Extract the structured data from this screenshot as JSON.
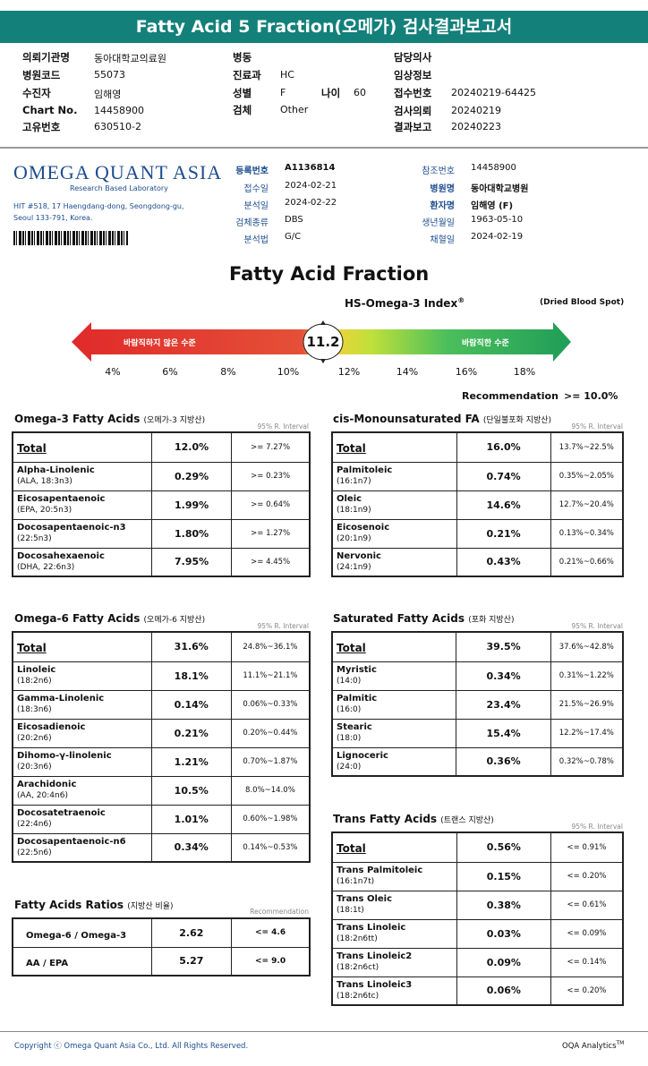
{
  "banner": "Fatty Acid 5 Fraction(오메가) 검사결과보고서",
  "patient": {
    "l1": "의뢰기관명",
    "v1": "동아대학교의료원",
    "l2": "병원코드",
    "v2": "55073",
    "l3": "수진자",
    "v3": "임해영",
    "l4": "Chart No.",
    "v4": "14458900",
    "l5": "고유번호",
    "v5": "630510-2",
    "l6": "병동",
    "v6": "",
    "l7": "진료과",
    "v7": "HC",
    "l8": "성별",
    "v8": "F",
    "l9": "나이",
    "v9": "60",
    "l10": "검체",
    "v10": "Other",
    "l11": "담당의사",
    "v11": "",
    "l12": "임상정보",
    "v12": "",
    "l13": "접수번호",
    "v13": "20240219-64425",
    "l14": "검사의뢰",
    "v14": "20240219",
    "l15": "결과보고",
    "v15": "20240223"
  },
  "lab": {
    "name": "OMEGA QUANT ASIA",
    "tagline": "Research Based Laboratory",
    "addr1": "HIT #518, 17 Haengdang-dong, Seongdong-gu,",
    "addr2": "Seoul 133-791, Korea."
  },
  "info": {
    "l1": "등록번호",
    "v1": "A1136814",
    "l2": "접수일",
    "v2": "2024-02-21",
    "l3": "분석일",
    "v3": "2024-02-22",
    "l4": "검체종류",
    "v4": "DBS",
    "l5": "분석법",
    "v5": "G/C",
    "l6": "참조번호",
    "v6": "14458900",
    "l7": "병원명",
    "v7": "동아대학교병원",
    "l8": "환자명",
    "v8": "임해영 (F)",
    "l9": "생년월일",
    "v9": "1963-05-10",
    "l10": "채혈일",
    "v10": "2024-02-19"
  },
  "fraction": {
    "title": "Fatty Acid Fraction",
    "index_label": "HS-Omega-3 Index",
    "reg": "®",
    "dried": "(Dried Blood Spot)",
    "bad": "바람직하지 않은 수준",
    "good": "바람직한 수준",
    "value": "11.2",
    "ticks": [
      "4%",
      "6%",
      "8%",
      "10%",
      "12%",
      "14%",
      "16%",
      "18%"
    ],
    "rec_label": "Recommendation",
    "rec_value": ">= 10.0%",
    "colors": {
      "red": "#e33a3a",
      "green": "#2aa85a",
      "yellow": "#c9e23a"
    }
  },
  "ri": "95% R. Interval",
  "rec_hdr": "Recommendation",
  "omega3": {
    "title": "Omega-3 Fatty Acids",
    "sub": "(오메가-3 지방산)",
    "total": {
      "name": "Total",
      "value": "12.0%",
      "range": ">= 7.27%"
    },
    "rows": [
      {
        "name": "Alpha-Linolenic",
        "abbr": "(ALA, 18:3n3)",
        "value": "0.29%",
        "range": ">= 0.23%"
      },
      {
        "name": "Eicosapentaenoic",
        "abbr": "(EPA, 20:5n3)",
        "value": "1.99%",
        "range": ">= 0.64%"
      },
      {
        "name": "Docosapentaenoic-n3",
        "abbr": "(22:5n3)",
        "value": "1.80%",
        "range": ">= 1.27%"
      },
      {
        "name": "Docosahexaenoic",
        "abbr": "(DHA, 22:6n3)",
        "value": "7.95%",
        "range": ">= 4.45%"
      }
    ]
  },
  "mufa": {
    "title": "cis-Monounsaturated FA",
    "sub": "(단일불포화 지방산)",
    "total": {
      "name": "Total",
      "value": "16.0%",
      "range": "13.7%~22.5%"
    },
    "rows": [
      {
        "name": "Palmitoleic",
        "abbr": "(16:1n7)",
        "value": "0.74%",
        "range": "0.35%~2.05%"
      },
      {
        "name": "Oleic",
        "abbr": "(18:1n9)",
        "value": "14.6%",
        "range": "12.7%~20.4%"
      },
      {
        "name": "Eicosenoic",
        "abbr": "(20:1n9)",
        "value": "0.21%",
        "range": "0.13%~0.34%"
      },
      {
        "name": "Nervonic",
        "abbr": "(24:1n9)",
        "value": "0.43%",
        "range": "0.21%~0.66%"
      }
    ]
  },
  "omega6": {
    "title": "Omega-6 Fatty Acids",
    "sub": "(오메가-6 지방산)",
    "total": {
      "name": "Total",
      "value": "31.6%",
      "range": "24.8%~36.1%"
    },
    "rows": [
      {
        "name": "Linoleic",
        "abbr": "(18:2n6)",
        "value": "18.1%",
        "range": "11.1%~21.1%"
      },
      {
        "name": "Gamma-Linolenic",
        "abbr": "(18:3n6)",
        "value": "0.14%",
        "range": "0.06%~0.33%"
      },
      {
        "name": "Eicosadienoic",
        "abbr": "(20:2n6)",
        "value": "0.21%",
        "range": "0.20%~0.44%"
      },
      {
        "name": "Dihomo-γ-linolenic",
        "abbr": "(20:3n6)",
        "value": "1.21%",
        "range": "0.70%~1.87%"
      },
      {
        "name": "Arachidonic",
        "abbr": "(AA, 20:4n6)",
        "value": "10.5%",
        "range": "8.0%~14.0%"
      },
      {
        "name": "Docosatetraenoic",
        "abbr": "(22:4n6)",
        "value": "1.01%",
        "range": "0.60%~1.98%"
      },
      {
        "name": "Docosapentaenoic-n6",
        "abbr": "(22:5n6)",
        "value": "0.34%",
        "range": "0.14%~0.53%"
      }
    ]
  },
  "sfa": {
    "title": "Saturated Fatty Acids",
    "sub": "(포화 지방산)",
    "total": {
      "name": "Total",
      "value": "39.5%",
      "range": "37.6%~42.8%"
    },
    "rows": [
      {
        "name": "Myristic",
        "abbr": "(14:0)",
        "value": "0.34%",
        "range": "0.31%~1.22%"
      },
      {
        "name": "Palmitic",
        "abbr": "(16:0)",
        "value": "23.4%",
        "range": "21.5%~26.9%"
      },
      {
        "name": "Stearic",
        "abbr": "(18:0)",
        "value": "15.4%",
        "range": "12.2%~17.4%"
      },
      {
        "name": "Lignoceric",
        "abbr": "(24:0)",
        "value": "0.36%",
        "range": "0.32%~0.78%"
      }
    ]
  },
  "trans": {
    "title": "Trans Fatty Acids",
    "sub": "(트랜스 지방산)",
    "total": {
      "name": "Total",
      "value": "0.56%",
      "range": "<= 0.91%"
    },
    "rows": [
      {
        "name": "Trans Palmitoleic",
        "abbr": "(16:1n7t)",
        "value": "0.15%",
        "range": "<= 0.20%"
      },
      {
        "name": "Trans Oleic",
        "abbr": "(18:1t)",
        "value": "0.38%",
        "range": "<= 0.61%"
      },
      {
        "name": "Trans Linoleic",
        "abbr": "(18:2n6tt)",
        "value": "0.03%",
        "range": "<= 0.09%"
      },
      {
        "name": "Trans Linoleic2",
        "abbr": "(18:2n6ct)",
        "value": "0.09%",
        "range": "<= 0.14%"
      },
      {
        "name": "Trans Linoleic3",
        "abbr": "(18:2n6tc)",
        "value": "0.06%",
        "range": "<= 0.20%"
      }
    ]
  },
  "ratios": {
    "title": "Fatty Acids Ratios",
    "sub": "(지방산 비율)",
    "rows": [
      {
        "name": "Omega-6 / Omega-3",
        "value": "2.62",
        "range": "<= 4.6"
      },
      {
        "name": "AA / EPA",
        "value": "5.27",
        "range": "<= 9.0"
      }
    ]
  },
  "footer": {
    "copyright": "Copyright ⓒ Omega Quant Asia Co., Ltd.  All Rights Reserved.",
    "brand": "OQA Analytics",
    "tm": "TM"
  }
}
